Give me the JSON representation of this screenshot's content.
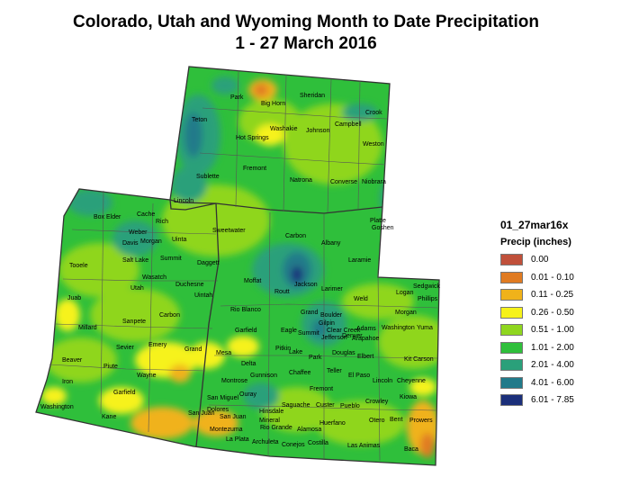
{
  "title": {
    "line1": "Colorado, Utah and Wyoming Month to Date Precipitation",
    "line2": "1 - 27 March 2016"
  },
  "legend": {
    "name": "01_27mar16x",
    "subtitle": "Precip (inches)",
    "classes": [
      {
        "label": "0.00",
        "color": "#c0503a"
      },
      {
        "label": "0.01 - 0.10",
        "color": "#e07b22"
      },
      {
        "label": "0.11 - 0.25",
        "color": "#f0b21a"
      },
      {
        "label": "0.26 - 0.50",
        "color": "#f6f21a"
      },
      {
        "label": "0.51 - 1.00",
        "color": "#8fd61f"
      },
      {
        "label": "1.01 - 2.00",
        "color": "#2fbf3b"
      },
      {
        "label": "2.01 - 4.00",
        "color": "#2aa07a"
      },
      {
        "label": "4.01 - 6.00",
        "color": "#217a8a"
      },
      {
        "label": "6.01 - 7.85",
        "color": "#1b2f7a"
      }
    ]
  },
  "counties": {
    "wyoming": [
      "Park",
      "Big Horn",
      "Sheridan",
      "Crook",
      "Teton",
      "Washakie",
      "Johnson",
      "Campbell",
      "Hot Springs",
      "Weston",
      "Fremont",
      "Sublette",
      "Natrona",
      "Converse",
      "Niobrara",
      "Lincoln",
      "Sweetwater",
      "Carbon",
      "Albany",
      "Platte",
      "Goshen",
      "Uinta",
      "Laramie"
    ],
    "utah": [
      "Box Elder",
      "Cache",
      "Rich",
      "Weber",
      "Davis",
      "Morgan",
      "Salt Lake",
      "Summit",
      "Daggett",
      "Tooele",
      "Wasatch",
      "Utah",
      "Duchesne",
      "Uintah",
      "Juab",
      "Carbon",
      "Sanpete",
      "Millard",
      "Emery",
      "Sevier",
      "Grand",
      "Beaver",
      "Piute",
      "Wayne",
      "Iron",
      "Garfield",
      "Washington",
      "Kane",
      "San Juan"
    ],
    "colorado": [
      "Moffat",
      "Jackson",
      "Larimer",
      "Logan",
      "Sedgwick",
      "Phillips",
      "Routt",
      "Weld",
      "Morgan",
      "Rio Blanco",
      "Grand",
      "Boulder",
      "Gilpin",
      "Clear Creek",
      "Jefferson",
      "Adams",
      "Arapahoe",
      "Washington",
      "Yuma",
      "Garfield",
      "Eagle",
      "Summit",
      "Denver",
      "Mesa",
      "Pitkin",
      "Lake",
      "Park",
      "Douglas",
      "Elbert",
      "Delta",
      "Chaffee",
      "Teller",
      "El Paso",
      "Lincoln",
      "Kit Carson",
      "Gunnison",
      "Montrose",
      "Cheyenne",
      "Fremont",
      "Ouray",
      "San Miguel",
      "Saguache",
      "Custer",
      "Pueblo",
      "Crowley",
      "Kiowa",
      "Dolores",
      "San Juan",
      "Hinsdale",
      "Mineral",
      "Rio Grande",
      "Alamosa",
      "Huerfano",
      "Otero",
      "Bent",
      "Prowers",
      "Montezuma",
      "La Plata",
      "Archuleta",
      "Conejos",
      "Costilla",
      "Las Animas",
      "Baca"
    ]
  }
}
